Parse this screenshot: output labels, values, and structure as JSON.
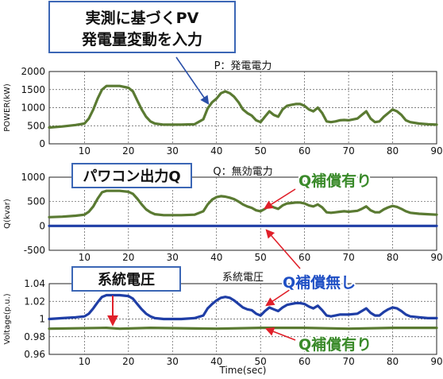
{
  "callouts": {
    "input_line1": "実測に基づくPV",
    "input_line2": "発電量変動を入力",
    "pcs_output": "パワコン出力Q",
    "grid_voltage_box": "系統電圧",
    "q_comp_yes_top": "Q補償有り",
    "q_comp_no": "Q補償無し",
    "q_comp_yes_bottom": "Q補償有り"
  },
  "colors": {
    "green_series": "#5a7a32",
    "blue_series": "#1f3ea6",
    "callout_green": "#3a8a2a",
    "callout_blue": "#1f4fc4",
    "arrow_red": "#e0202a",
    "callout_border": "#3b66b5"
  },
  "chart_data": [
    {
      "type": "line",
      "title": "P：発電電力",
      "xlabel": "",
      "ylabel": "POWER(kW)",
      "xlim": [
        2,
        90
      ],
      "ylim": [
        0,
        2000
      ],
      "xticks": [
        10,
        20,
        30,
        40,
        50,
        60,
        70,
        80,
        90
      ],
      "yticks": [
        0,
        500,
        1000,
        1500,
        2000
      ],
      "grid": true,
      "series": [
        {
          "color": "#5a7a32",
          "x": [
            2,
            5,
            8,
            10,
            11,
            12,
            13,
            14,
            15,
            18,
            20,
            21,
            22,
            23,
            24,
            25,
            26,
            28,
            32,
            35,
            37,
            38,
            39,
            40,
            41,
            42,
            43,
            44,
            45,
            46,
            47,
            48,
            49,
            50,
            51,
            52,
            53,
            54,
            55,
            56,
            57,
            58,
            59,
            60,
            61,
            62,
            63,
            64,
            65,
            66,
            67,
            68,
            69,
            70,
            72,
            73,
            74,
            75,
            76,
            77,
            78,
            79,
            80,
            81,
            82,
            83,
            84,
            86,
            88,
            90
          ],
          "y": [
            450,
            480,
            520,
            560,
            700,
            950,
            1250,
            1500,
            1600,
            1600,
            1550,
            1450,
            1200,
            950,
            750,
            620,
            560,
            530,
            530,
            540,
            680,
            980,
            1150,
            1250,
            1400,
            1450,
            1400,
            1300,
            1150,
            950,
            850,
            780,
            650,
            600,
            750,
            900,
            800,
            750,
            950,
            1050,
            1080,
            1100,
            1100,
            1050,
            950,
            900,
            1000,
            850,
            620,
            600,
            620,
            650,
            660,
            650,
            700,
            800,
            900,
            700,
            600,
            620,
            750,
            850,
            950,
            900,
            800,
            650,
            600,
            560,
            540,
            530
          ]
        }
      ]
    },
    {
      "type": "line",
      "title": "Q：無効電力",
      "xlabel": "",
      "ylabel": "Q(kvar)",
      "xlim": [
        2,
        90
      ],
      "ylim": [
        -500,
        1000
      ],
      "xticks": [
        10,
        20,
        30,
        40,
        50,
        60,
        70,
        80,
        90
      ],
      "yticks": [
        -500,
        0,
        500,
        1000
      ],
      "grid": true,
      "series": [
        {
          "color": "#5a7a32",
          "x": [
            2,
            5,
            8,
            10,
            11,
            12,
            13,
            14,
            15,
            18,
            20,
            21,
            22,
            23,
            24,
            25,
            26,
            28,
            32,
            35,
            37,
            38,
            39,
            40,
            41,
            42,
            43,
            44,
            45,
            46,
            47,
            48,
            49,
            50,
            51,
            52,
            53,
            54,
            55,
            56,
            57,
            58,
            59,
            60,
            61,
            62,
            63,
            64,
            65,
            66,
            67,
            68,
            69,
            70,
            72,
            73,
            74,
            75,
            76,
            77,
            78,
            79,
            80,
            81,
            82,
            83,
            84,
            86,
            88,
            90
          ],
          "y": [
            180,
            190,
            210,
            230,
            290,
            400,
            560,
            690,
            720,
            720,
            700,
            660,
            560,
            440,
            340,
            280,
            240,
            220,
            220,
            230,
            300,
            440,
            540,
            590,
            610,
            600,
            580,
            550,
            500,
            440,
            400,
            370,
            320,
            300,
            350,
            420,
            380,
            350,
            420,
            460,
            470,
            480,
            480,
            460,
            420,
            400,
            440,
            380,
            280,
            270,
            280,
            290,
            300,
            290,
            310,
            350,
            400,
            320,
            280,
            280,
            340,
            380,
            410,
            390,
            350,
            300,
            270,
            250,
            240,
            230
          ]
        },
        {
          "color": "#1f3ea6",
          "x": [
            2,
            90
          ],
          "y": [
            0,
            0
          ]
        }
      ]
    },
    {
      "type": "line",
      "title": "系統電圧",
      "xlabel": "Time(sec)",
      "ylabel": "Voltage(p.u.)",
      "xlim": [
        2,
        90
      ],
      "ylim": [
        0.96,
        1.04
      ],
      "xticks": [
        10,
        20,
        30,
        40,
        50,
        60,
        70,
        80,
        90
      ],
      "yticks": [
        0.96,
        0.98,
        1.0,
        1.02,
        1.04
      ],
      "ytick_labels": [
        "0.96",
        "0.98",
        "1",
        "1.02",
        "1.04"
      ],
      "grid": true,
      "series": [
        {
          "color": "#1f3ea6",
          "x": [
            2,
            5,
            8,
            10,
            11,
            12,
            13,
            14,
            15,
            18,
            20,
            21,
            22,
            23,
            24,
            25,
            26,
            28,
            32,
            35,
            37,
            38,
            39,
            40,
            41,
            42,
            43,
            44,
            45,
            46,
            47,
            48,
            49,
            50,
            51,
            52,
            53,
            54,
            55,
            56,
            57,
            58,
            59,
            60,
            61,
            62,
            63,
            64,
            65,
            66,
            67,
            68,
            69,
            70,
            72,
            73,
            74,
            75,
            76,
            77,
            78,
            79,
            80,
            81,
            82,
            83,
            84,
            86,
            88,
            90
          ],
          "y": [
            1.0,
            1.001,
            1.002,
            1.003,
            1.006,
            1.012,
            1.019,
            1.025,
            1.027,
            1.027,
            1.026,
            1.023,
            1.017,
            1.011,
            1.006,
            1.003,
            1.001,
            1.0,
            1.0,
            1.001,
            1.004,
            1.012,
            1.017,
            1.021,
            1.024,
            1.025,
            1.024,
            1.021,
            1.017,
            1.013,
            1.011,
            1.01,
            1.006,
            1.004,
            1.009,
            1.013,
            1.011,
            1.009,
            1.013,
            1.016,
            1.017,
            1.018,
            1.018,
            1.017,
            1.014,
            1.012,
            1.015,
            1.01,
            1.004,
            1.003,
            1.004,
            1.005,
            1.005,
            1.005,
            1.006,
            1.009,
            1.012,
            1.007,
            1.004,
            1.004,
            1.008,
            1.011,
            1.013,
            1.012,
            1.009,
            1.005,
            1.003,
            1.002,
            1.001,
            1.001
          ]
        },
        {
          "color": "#5a7a32",
          "x": [
            2,
            15,
            18,
            25,
            40,
            50,
            60,
            70,
            80,
            90
          ],
          "y": [
            0.989,
            0.99,
            0.989,
            0.99,
            0.989,
            0.99,
            0.99,
            0.989,
            0.99,
            0.99
          ]
        }
      ]
    }
  ]
}
